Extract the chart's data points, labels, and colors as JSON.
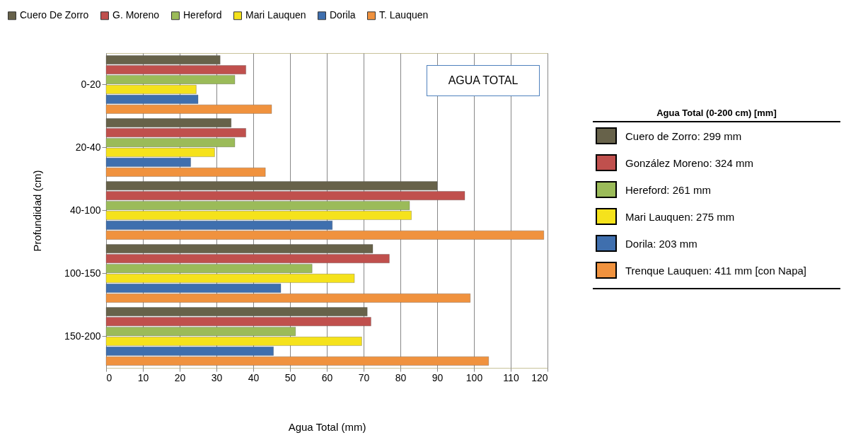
{
  "chart_data": {
    "type": "bar",
    "orientation": "horizontal",
    "xlabel": "Agua Total (mm)",
    "ylabel": "Profundidad (cm)",
    "categories": [
      "0-20",
      "20-40",
      "40-100",
      "100-150",
      "150-200"
    ],
    "series": [
      {
        "name": "Cuero De Zorro",
        "color": "#67624a",
        "values": [
          31,
          34,
          90,
          72.5,
          71
        ]
      },
      {
        "name": "G. Moreno",
        "color": "#c0504d",
        "values": [
          38,
          38,
          97.5,
          77,
          72
        ]
      },
      {
        "name": "Hereford",
        "color": "#9bbb59",
        "values": [
          35,
          35,
          82.5,
          56,
          51.5
        ]
      },
      {
        "name": "Mari Lauquen",
        "color": "#f5e21c",
        "values": [
          24.5,
          29.5,
          83,
          67.5,
          69.5
        ]
      },
      {
        "name": "Dorila",
        "color": "#3f6fae",
        "values": [
          25,
          23,
          61.5,
          47.5,
          45.5
        ]
      },
      {
        "name": "T. Lauquen",
        "color": "#f0923e",
        "values": [
          45,
          43.3,
          119,
          99,
          104
        ]
      }
    ],
    "xlim": [
      0,
      120
    ],
    "xticks": [
      0,
      10,
      20,
      30,
      40,
      50,
      60,
      70,
      80,
      90,
      100,
      110,
      120
    ],
    "grid": "x",
    "legend": "top",
    "annotations": [
      "AGUA TOTAL",
      "Agua Total (0-200 cm) [mm]",
      "Cuero de Zorro: 299 mm",
      "González Moreno: 324 mm",
      "Hereford: 261 mm",
      "Mari Lauquen: 275 mm",
      "Dorila: 203 mm",
      "Trenque Lauquen: 411 mm [con Napa]"
    ]
  }
}
